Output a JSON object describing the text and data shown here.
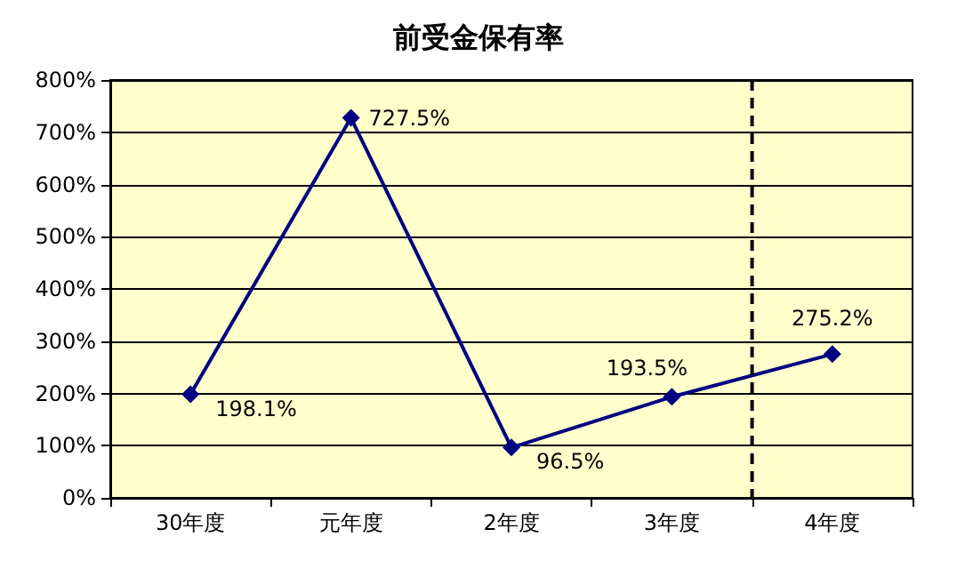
{
  "chart_data": {
    "type": "line",
    "title": "前受金保有率",
    "categories": [
      "30年度",
      "元年度",
      "2年度",
      "3年度",
      "4年度"
    ],
    "series": [
      {
        "color": "#000080",
        "values": [
          198.1,
          727.5,
          96.5,
          193.5,
          275.2
        ],
        "value_labels": [
          "198.1%",
          "727.5%",
          "96.5%",
          "193.5%",
          "275.2%"
        ]
      }
    ],
    "ylim": [
      0,
      800
    ],
    "yticks": [
      {
        "value": 0,
        "label": "0%"
      },
      {
        "value": 100,
        "label": "100%"
      },
      {
        "value": 200,
        "label": "200%"
      },
      {
        "value": 300,
        "label": "300%"
      },
      {
        "value": 400,
        "label": "400%"
      },
      {
        "value": 500,
        "label": "500%"
      },
      {
        "value": 600,
        "label": "600%"
      },
      {
        "value": 700,
        "label": "700%"
      },
      {
        "value": 800,
        "label": "800%"
      }
    ],
    "ref_lines": [
      {
        "axis": "x",
        "value": "4年度",
        "color": "#000000",
        "line_style": "dashed"
      }
    ],
    "grid": "y",
    "marker": "diamond",
    "line_style": "solid"
  }
}
